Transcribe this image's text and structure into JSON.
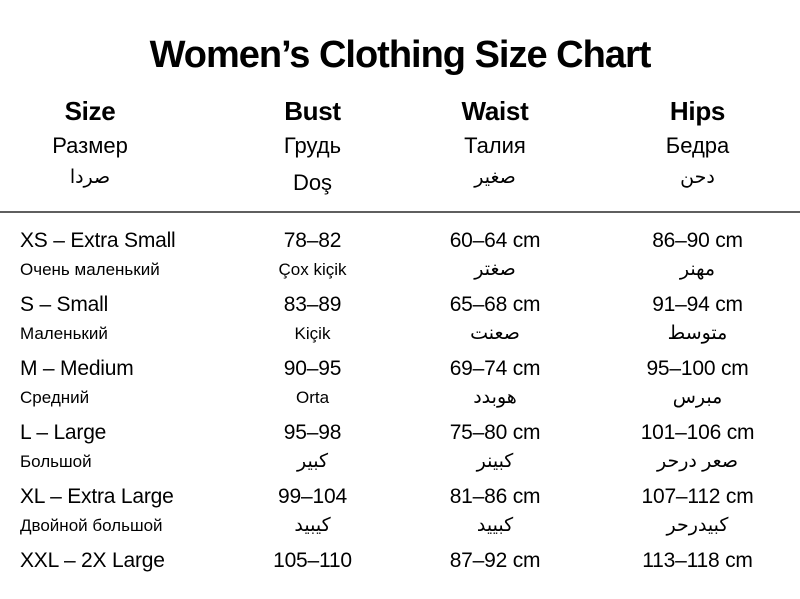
{
  "title": "Women’s Clothing Size Chart",
  "colors": {
    "background": "#ffffff",
    "text": "#000000",
    "divider": "#5f5f5f"
  },
  "table": {
    "columns": [
      {
        "key": "size",
        "en": "Size",
        "ru": "Размер",
        "xl": "صردا",
        "rtl": true
      },
      {
        "key": "bust",
        "en": "Bust",
        "ru": "Грудь",
        "xl": "Doş",
        "rtl": false
      },
      {
        "key": "waist",
        "en": "Waist",
        "ru": "Талия",
        "xl": "صغير",
        "rtl": true
      },
      {
        "key": "hips",
        "en": "Hips",
        "ru": "Бедра",
        "xl": "دحن",
        "rtl": true
      }
    ],
    "rows": [
      {
        "cells": [
          {
            "main": "XS – Extra Small",
            "sub": "Очень маленький",
            "rtl": false
          },
          {
            "main": "78–82",
            "sub": "Çox kiçik",
            "rtl": false
          },
          {
            "main": "60–64 cm",
            "sub": "صغتر",
            "rtl": true
          },
          {
            "main": "86–90 cm",
            "sub": "مهنر",
            "rtl": true
          }
        ]
      },
      {
        "cells": [
          {
            "main": "S – Small",
            "sub": "Маленький",
            "rtl": false
          },
          {
            "main": "83–89",
            "sub": "Kiçik",
            "rtl": false
          },
          {
            "main": "65–68 cm",
            "sub": "صعنت",
            "rtl": true
          },
          {
            "main": "91–94 cm",
            "sub": "متوسط",
            "rtl": true
          }
        ]
      },
      {
        "cells": [
          {
            "main": "M – Medium",
            "sub": "Средний",
            "rtl": false
          },
          {
            "main": "90–95",
            "sub": "Orta",
            "rtl": false
          },
          {
            "main": "69–74 cm",
            "sub": "هوبدد",
            "rtl": true
          },
          {
            "main": "95–100 cm",
            "sub": "مبرس",
            "rtl": true
          }
        ]
      },
      {
        "cells": [
          {
            "main": "L – Large",
            "sub": "Большой",
            "rtl": false
          },
          {
            "main": "95–98",
            "sub": "كبير",
            "rtl": true
          },
          {
            "main": "75–80 cm",
            "sub": "كبينر",
            "rtl": true
          },
          {
            "main": "101–106 cm",
            "sub": "صعر درحر",
            "rtl": true
          }
        ]
      },
      {
        "cells": [
          {
            "main": "XL – Extra Large",
            "sub": "Двойной большой",
            "rtl": false
          },
          {
            "main": "99–104",
            "sub": "كيبيد",
            "rtl": true
          },
          {
            "main": "81–86 cm",
            "sub": "كبييد",
            "rtl": true
          },
          {
            "main": "107–112 cm",
            "sub": "كبيدرحر",
            "rtl": true
          }
        ]
      },
      {
        "cells": [
          {
            "main": "XXL – 2X Large",
            "sub": "",
            "rtl": false
          },
          {
            "main": "105–110",
            "sub": "",
            "rtl": false
          },
          {
            "main": "87–92 cm",
            "sub": "",
            "rtl": false
          },
          {
            "main": "113–118 cm",
            "sub": "",
            "rtl": false
          }
        ]
      }
    ]
  }
}
